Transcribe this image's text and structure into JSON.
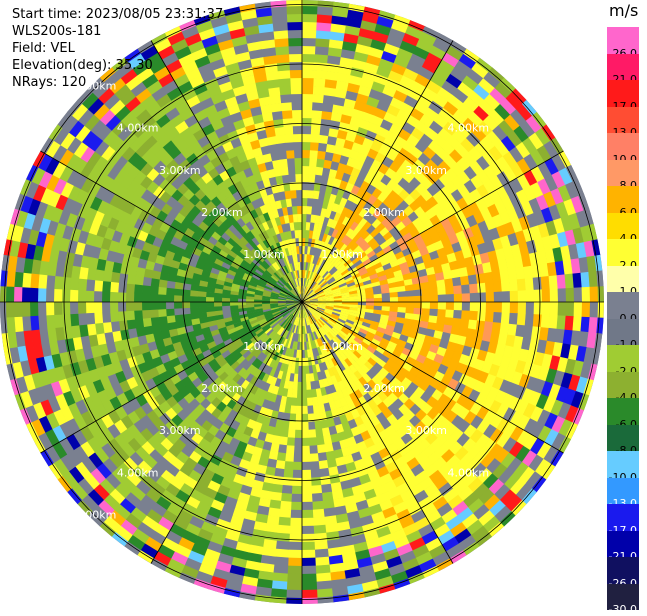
{
  "info": {
    "start_time": "Start time: 2023/08/05 23:31:37",
    "instrument": "WLS200s-181",
    "field": "Field: VEL",
    "elevation": "Elevation(deg): 35.30",
    "nrays": "NRays: 120"
  },
  "range_rings": {
    "labels": [
      "1.00km",
      "2.00km",
      "3.00km",
      "4.00km",
      "5.00km"
    ]
  },
  "colorbar": {
    "unit": "m/s",
    "levels": [
      "26.0",
      "21.0",
      "17.0",
      "13.0",
      "10.0",
      "8.0",
      "6.0",
      "4.0",
      "2.0",
      "1.0",
      "0.0",
      "-1.0",
      "-2.0",
      "-4.0",
      "-6.0",
      "-8.0",
      "-10.0",
      "-13.0",
      "-17.0",
      "-21.0",
      "-26.0",
      "-30.0"
    ],
    "colors": [
      "#ff66cc",
      "#ff1a66",
      "#ff1a1a",
      "#ff4d33",
      "#ff8066",
      "#ff9966",
      "#ffb300",
      "#ffdd00",
      "#ffff33",
      "#ffffaa",
      "#7a8090",
      "#707888",
      "#a0cc33",
      "#8db030",
      "#2a8a2a",
      "#1a6a3a",
      "#66ccff",
      "#3399ff",
      "#1a1aee",
      "#0000aa",
      "#101060",
      "#202040"
    ]
  }
}
